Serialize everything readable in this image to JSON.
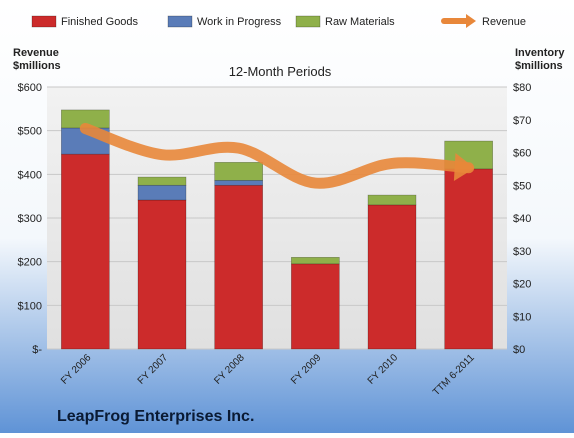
{
  "chart_data": {
    "type": "bar",
    "subtitle": "12-Month Periods",
    "company": "LeapFrog Enterprises Inc.",
    "left_axis": {
      "title_line1": "Revenue",
      "title_line2": "$millions",
      "ylim": [
        0,
        600
      ],
      "ticks": [
        "$-",
        "$100",
        "$200",
        "$300",
        "$400",
        "$500",
        "$600"
      ]
    },
    "right_axis": {
      "title_line1": "Inventory",
      "title_line2": "$millions",
      "ylim": [
        0,
        80
      ],
      "ticks": [
        "$0",
        "$10",
        "$20",
        "$30",
        "$40",
        "$50",
        "$60",
        "$70",
        "$80"
      ]
    },
    "categories": [
      "FY 2006",
      "FY 2007",
      "FY 2008",
      "FY 2009",
      "FY 2010",
      "TTM 6-2011"
    ],
    "series": [
      {
        "name": "Finished Goods",
        "axis": "right",
        "color": "#cc2b2b",
        "values": [
          59.5,
          45.5,
          50,
          26,
          44,
          55
        ]
      },
      {
        "name": "Work in Progress",
        "axis": "right",
        "color": "#5a7cb8",
        "values": [
          8,
          4.5,
          1.5,
          0,
          0,
          0
        ]
      },
      {
        "name": "Raw Materials",
        "axis": "right",
        "color": "#8fb04a",
        "values": [
          5.5,
          2.5,
          5.5,
          2,
          3,
          8.5
        ]
      },
      {
        "name": "Revenue",
        "axis": "left",
        "type": "line",
        "color": "#e8873a",
        "values": [
          505,
          445,
          460,
          380,
          425,
          415
        ]
      }
    ],
    "grid": true,
    "legend_position": "top"
  }
}
